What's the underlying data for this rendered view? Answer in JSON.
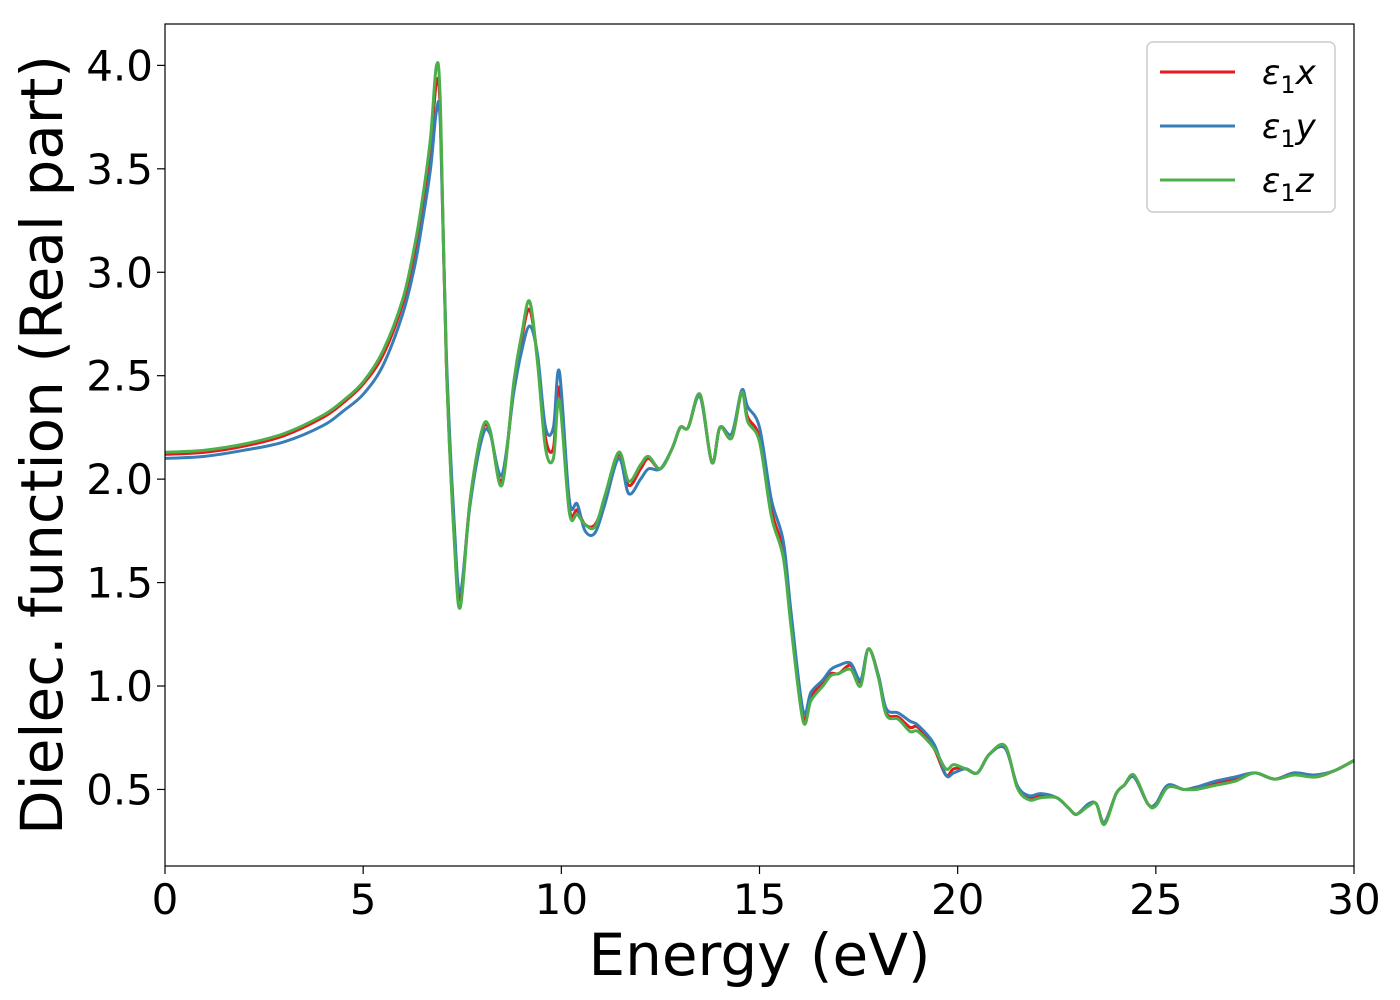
{
  "chart_data": {
    "type": "line",
    "title": "",
    "xlabel": "Energy (eV)",
    "ylabel": "Dielec. function (Real part)",
    "xlim": [
      0,
      30
    ],
    "ylim": [
      0.13,
      4.2
    ],
    "xticks": [
      0,
      5,
      10,
      15,
      20,
      25,
      30
    ],
    "xtick_labels": [
      "0",
      "5",
      "10",
      "15",
      "20",
      "25",
      "30"
    ],
    "yticks": [
      0.5,
      1.0,
      1.5,
      2.0,
      2.5,
      3.0,
      3.5,
      4.0
    ],
    "ytick_labels": [
      "0.5",
      "1.0",
      "1.5",
      "2.0",
      "2.5",
      "3.0",
      "3.5",
      "4.0"
    ],
    "grid": false,
    "legend_position": "top-right",
    "x": [
      0,
      1,
      2,
      3,
      4,
      4.5,
      5,
      5.5,
      6,
      6.3,
      6.5,
      6.7,
      6.85,
      6.95,
      7.1,
      7.3,
      7.45,
      7.7,
      8.0,
      8.2,
      8.5,
      8.8,
      9.0,
      9.2,
      9.4,
      9.6,
      9.8,
      9.95,
      10.2,
      10.4,
      10.6,
      10.85,
      11.1,
      11.45,
      11.7,
      12.0,
      12.2,
      12.5,
      12.8,
      13.0,
      13.2,
      13.5,
      13.8,
      14.0,
      14.3,
      14.55,
      14.7,
      15.0,
      15.3,
      15.6,
      15.8,
      16.1,
      16.3,
      16.6,
      16.8,
      17.0,
      17.3,
      17.55,
      17.75,
      18.0,
      18.2,
      18.5,
      18.8,
      19.0,
      19.4,
      19.7,
      19.9,
      20.2,
      20.5,
      20.8,
      21.2,
      21.5,
      21.8,
      22.1,
      22.5,
      22.8,
      23.0,
      23.3,
      23.5,
      23.7,
      24.0,
      24.2,
      24.45,
      24.8,
      25.0,
      25.3,
      25.7,
      26.0,
      26.5,
      27.0,
      27.5,
      28.0,
      28.5,
      29.0,
      29.5,
      30.0
    ],
    "series": [
      {
        "name": "x",
        "color": "#e41a1c",
        "values": [
          2.12,
          2.13,
          2.16,
          2.21,
          2.3,
          2.37,
          2.46,
          2.6,
          2.85,
          3.1,
          3.33,
          3.6,
          3.92,
          3.75,
          2.55,
          1.72,
          1.42,
          1.9,
          2.23,
          2.23,
          1.99,
          2.45,
          2.68,
          2.82,
          2.58,
          2.2,
          2.15,
          2.44,
          1.86,
          1.85,
          1.78,
          1.78,
          1.9,
          2.12,
          1.97,
          2.05,
          2.1,
          2.05,
          2.15,
          2.25,
          2.25,
          2.4,
          2.08,
          2.25,
          2.2,
          2.42,
          2.3,
          2.2,
          1.85,
          1.65,
          1.3,
          0.85,
          0.95,
          1.02,
          1.06,
          1.06,
          1.1,
          1.02,
          1.18,
          1.05,
          0.87,
          0.85,
          0.8,
          0.8,
          0.7,
          0.57,
          0.6,
          0.6,
          0.58,
          0.67,
          0.7,
          0.52,
          0.46,
          0.47,
          0.46,
          0.41,
          0.38,
          0.43,
          0.43,
          0.34,
          0.48,
          0.52,
          0.56,
          0.43,
          0.43,
          0.52,
          0.5,
          0.51,
          0.53,
          0.55,
          0.58,
          0.55,
          0.58,
          0.56,
          0.59,
          0.64
        ]
      },
      {
        "name": "y",
        "color": "#377eb8",
        "values": [
          2.1,
          2.11,
          2.14,
          2.18,
          2.26,
          2.33,
          2.41,
          2.55,
          2.8,
          3.03,
          3.25,
          3.5,
          3.78,
          3.7,
          2.6,
          1.78,
          1.45,
          1.88,
          2.2,
          2.22,
          2.02,
          2.42,
          2.62,
          2.74,
          2.6,
          2.25,
          2.25,
          2.52,
          1.9,
          1.88,
          1.75,
          1.74,
          1.88,
          2.1,
          1.93,
          2.0,
          2.05,
          2.05,
          2.15,
          2.25,
          2.25,
          2.4,
          2.08,
          2.25,
          2.22,
          2.43,
          2.35,
          2.25,
          1.9,
          1.7,
          1.35,
          0.88,
          0.97,
          1.03,
          1.08,
          1.1,
          1.11,
          1.03,
          1.18,
          1.05,
          0.89,
          0.87,
          0.83,
          0.81,
          0.72,
          0.57,
          0.58,
          0.6,
          0.58,
          0.67,
          0.7,
          0.52,
          0.47,
          0.48,
          0.46,
          0.41,
          0.38,
          0.43,
          0.43,
          0.34,
          0.48,
          0.52,
          0.56,
          0.43,
          0.43,
          0.52,
          0.5,
          0.51,
          0.54,
          0.56,
          0.58,
          0.55,
          0.58,
          0.57,
          0.59,
          0.64
        ]
      },
      {
        "name": "z",
        "color": "#4daf4a",
        "values": [
          2.13,
          2.14,
          2.17,
          2.22,
          2.31,
          2.38,
          2.47,
          2.62,
          2.87,
          3.13,
          3.36,
          3.65,
          4.0,
          3.8,
          2.55,
          1.7,
          1.38,
          1.9,
          2.24,
          2.24,
          1.97,
          2.47,
          2.7,
          2.86,
          2.56,
          2.15,
          2.1,
          2.38,
          1.84,
          1.83,
          1.78,
          1.77,
          1.92,
          2.13,
          1.99,
          2.07,
          2.11,
          2.05,
          2.15,
          2.25,
          2.25,
          2.41,
          2.08,
          2.25,
          2.2,
          2.42,
          2.28,
          2.18,
          1.82,
          1.62,
          1.28,
          0.83,
          0.93,
          1.0,
          1.05,
          1.06,
          1.08,
          1.0,
          1.18,
          1.04,
          0.86,
          0.84,
          0.78,
          0.78,
          0.7,
          0.6,
          0.62,
          0.6,
          0.58,
          0.67,
          0.71,
          0.51,
          0.45,
          0.46,
          0.46,
          0.41,
          0.38,
          0.42,
          0.43,
          0.33,
          0.48,
          0.52,
          0.57,
          0.43,
          0.42,
          0.51,
          0.5,
          0.5,
          0.52,
          0.54,
          0.58,
          0.55,
          0.57,
          0.56,
          0.59,
          0.64
        ]
      }
    ]
  },
  "legend": {
    "labels": [
      "ε",
      "ε",
      "ε"
    ],
    "subscripts": [
      "1",
      "1",
      "1"
    ],
    "suffixes": [
      "x",
      "y",
      "z"
    ]
  }
}
